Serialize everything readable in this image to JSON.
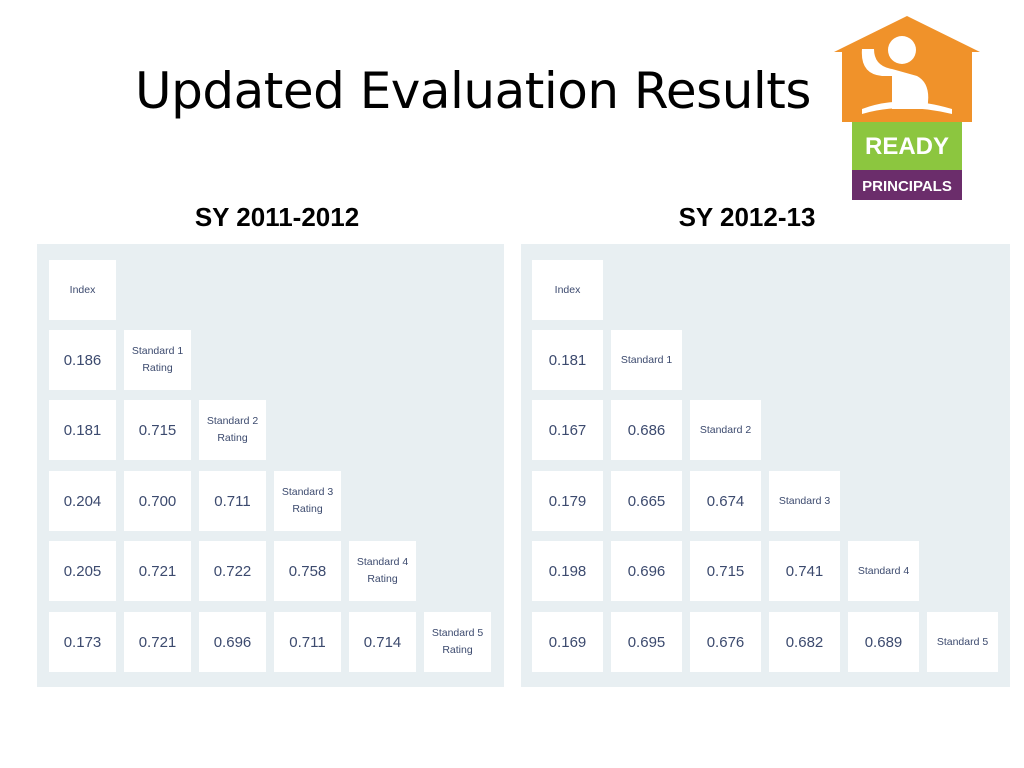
{
  "title": "Updated Evaluation Results",
  "logo": {
    "top": "READY",
    "bottom": "PRINCIPALS"
  },
  "panels": [
    {
      "heading": "SY 2011-2012",
      "rows": [
        [
          "Index"
        ],
        [
          "0.186",
          "Standard 1 Rating"
        ],
        [
          "0.181",
          "0.715",
          "Standard 2 Rating"
        ],
        [
          "0.204",
          "0.700",
          "0.711",
          "Standard 3 Rating"
        ],
        [
          "0.205",
          "0.721",
          "0.722",
          "0.758",
          "Standard 4 Rating"
        ],
        [
          "0.173",
          "0.721",
          "0.696",
          "0.711",
          "0.714",
          "Standard 5 Rating"
        ]
      ]
    },
    {
      "heading": "SY 2012-13",
      "rows": [
        [
          "Index"
        ],
        [
          "0.181",
          "Standard 1"
        ],
        [
          "0.167",
          "0.686",
          "Standard 2"
        ],
        [
          "0.179",
          "0.665",
          "0.674",
          "Standard 3"
        ],
        [
          "0.198",
          "0.696",
          "0.715",
          "0.741",
          "Standard 4"
        ],
        [
          "0.169",
          "0.695",
          "0.676",
          "0.682",
          "0.689",
          "Standard 5"
        ]
      ]
    }
  ]
}
